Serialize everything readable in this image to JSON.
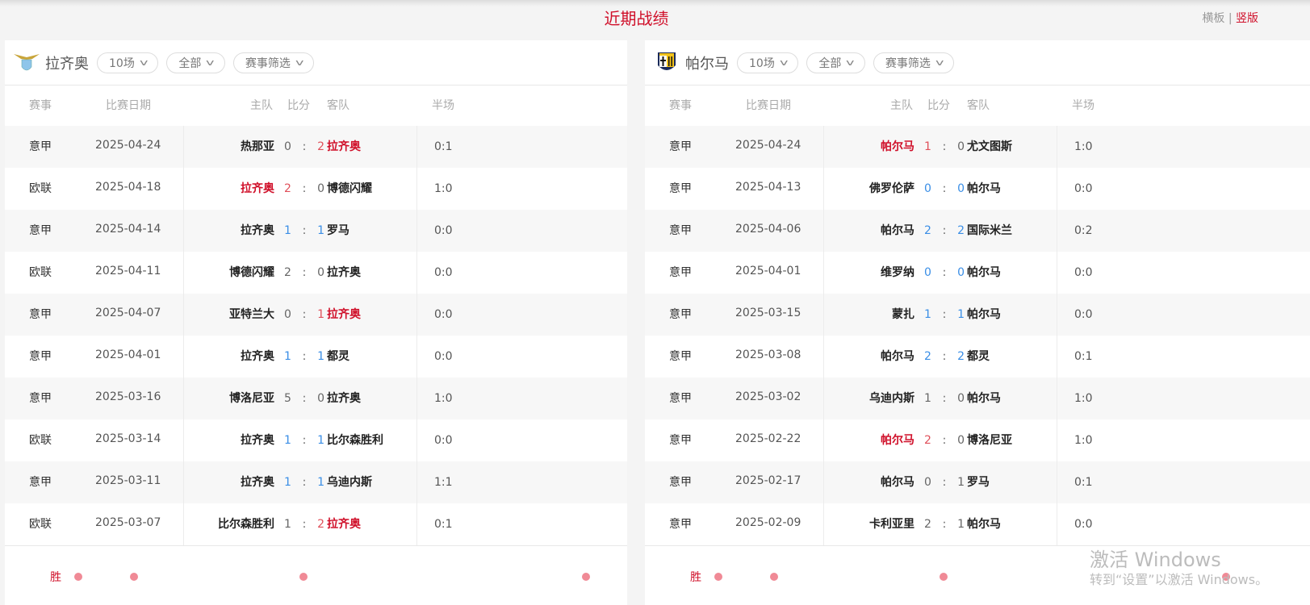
{
  "page": {
    "title": "近期战绩",
    "view_horizontal": "横板",
    "view_separator": "|",
    "view_vertical": "竖版"
  },
  "colors": {
    "accent": "#d0102a",
    "win_score": "#e0505a",
    "draw_score": "#3a8ee6"
  },
  "columns": {
    "league": "赛事",
    "date": "比赛日期",
    "home": "主队",
    "score": "比分",
    "away": "客队",
    "half": "半场"
  },
  "panels": [
    {
      "team": "拉齐奥",
      "logo": "lazio-eagle-crest",
      "filters": [
        "10场",
        "全部",
        "赛事筛选"
      ],
      "footer_label": "胜",
      "matches": [
        {
          "league": "意甲",
          "date": "2025-04-24",
          "home": "热那亚",
          "hs": "0",
          "as": "2",
          "away": "拉齐奥",
          "half": "0:1",
          "result": "W",
          "focus": "away"
        },
        {
          "league": "欧联",
          "date": "2025-04-18",
          "home": "拉齐奥",
          "hs": "2",
          "as": "0",
          "away": "博德闪耀",
          "half": "1:0",
          "result": "W",
          "focus": "home"
        },
        {
          "league": "意甲",
          "date": "2025-04-14",
          "home": "拉齐奥",
          "hs": "1",
          "as": "1",
          "away": "罗马",
          "half": "0:0",
          "result": "D",
          "focus": "home"
        },
        {
          "league": "欧联",
          "date": "2025-04-11",
          "home": "博德闪耀",
          "hs": "2",
          "as": "0",
          "away": "拉齐奥",
          "half": "0:0",
          "result": "L",
          "focus": "away"
        },
        {
          "league": "意甲",
          "date": "2025-04-07",
          "home": "亚特兰大",
          "hs": "0",
          "as": "1",
          "away": "拉齐奥",
          "half": "0:0",
          "result": "W",
          "focus": "away"
        },
        {
          "league": "意甲",
          "date": "2025-04-01",
          "home": "拉齐奥",
          "hs": "1",
          "as": "1",
          "away": "都灵",
          "half": "0:0",
          "result": "D",
          "focus": "home"
        },
        {
          "league": "意甲",
          "date": "2025-03-16",
          "home": "博洛尼亚",
          "hs": "5",
          "as": "0",
          "away": "拉齐奥",
          "half": "1:0",
          "result": "L",
          "focus": "away"
        },
        {
          "league": "欧联",
          "date": "2025-03-14",
          "home": "拉齐奥",
          "hs": "1",
          "as": "1",
          "away": "比尔森胜利",
          "half": "0:0",
          "result": "D",
          "focus": "home"
        },
        {
          "league": "意甲",
          "date": "2025-03-11",
          "home": "拉齐奥",
          "hs": "1",
          "as": "1",
          "away": "乌迪内斯",
          "half": "1:1",
          "result": "D",
          "focus": "home"
        },
        {
          "league": "欧联",
          "date": "2025-03-07",
          "home": "比尔森胜利",
          "hs": "1",
          "as": "2",
          "away": "拉齐奥",
          "half": "0:1",
          "result": "W",
          "focus": "away"
        }
      ]
    },
    {
      "team": "帕尔马",
      "logo": "parma-crest",
      "filters": [
        "10场",
        "全部",
        "赛事筛选"
      ],
      "footer_label": "胜",
      "matches": [
        {
          "league": "意甲",
          "date": "2025-04-24",
          "home": "帕尔马",
          "hs": "1",
          "as": "0",
          "away": "尤文图斯",
          "half": "1:0",
          "result": "W",
          "focus": "home"
        },
        {
          "league": "意甲",
          "date": "2025-04-13",
          "home": "佛罗伦萨",
          "hs": "0",
          "as": "0",
          "away": "帕尔马",
          "half": "0:0",
          "result": "D",
          "focus": "away"
        },
        {
          "league": "意甲",
          "date": "2025-04-06",
          "home": "帕尔马",
          "hs": "2",
          "as": "2",
          "away": "国际米兰",
          "half": "0:2",
          "result": "D",
          "focus": "home"
        },
        {
          "league": "意甲",
          "date": "2025-04-01",
          "home": "维罗纳",
          "hs": "0",
          "as": "0",
          "away": "帕尔马",
          "half": "0:0",
          "result": "D",
          "focus": "away"
        },
        {
          "league": "意甲",
          "date": "2025-03-15",
          "home": "蒙扎",
          "hs": "1",
          "as": "1",
          "away": "帕尔马",
          "half": "0:0",
          "result": "D",
          "focus": "away"
        },
        {
          "league": "意甲",
          "date": "2025-03-08",
          "home": "帕尔马",
          "hs": "2",
          "as": "2",
          "away": "都灵",
          "half": "0:1",
          "result": "D",
          "focus": "home"
        },
        {
          "league": "意甲",
          "date": "2025-03-02",
          "home": "乌迪内斯",
          "hs": "1",
          "as": "0",
          "away": "帕尔马",
          "half": "1:0",
          "result": "L",
          "focus": "away"
        },
        {
          "league": "意甲",
          "date": "2025-02-22",
          "home": "帕尔马",
          "hs": "2",
          "as": "0",
          "away": "博洛尼亚",
          "half": "1:0",
          "result": "W",
          "focus": "home"
        },
        {
          "league": "意甲",
          "date": "2025-02-17",
          "home": "帕尔马",
          "hs": "0",
          "as": "1",
          "away": "罗马",
          "half": "0:1",
          "result": "L",
          "focus": "home"
        },
        {
          "league": "意甲",
          "date": "2025-02-09",
          "home": "卡利亚里",
          "hs": "2",
          "as": "1",
          "away": "帕尔马",
          "half": "0:0",
          "result": "L",
          "focus": "away"
        }
      ]
    }
  ],
  "watermark": {
    "line1": "激活 Windows",
    "line2": "转到“设置”以激活 Windows。"
  }
}
